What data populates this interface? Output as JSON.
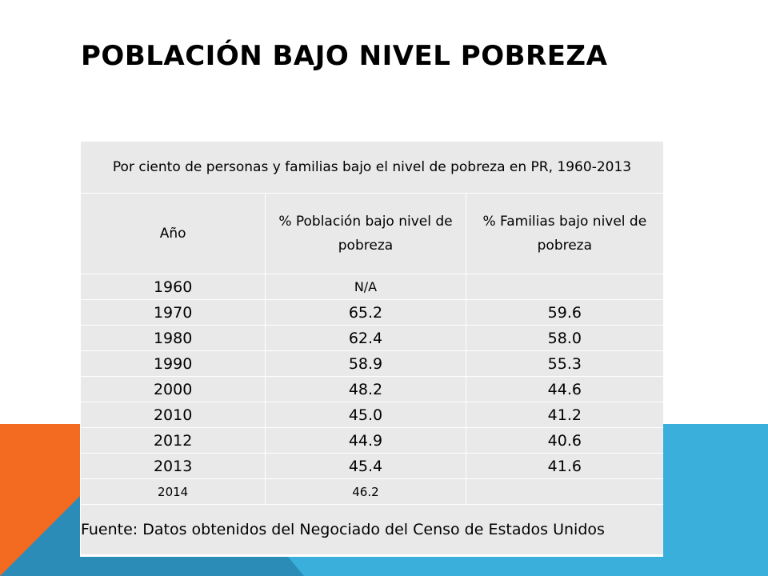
{
  "slide": {
    "title": "POBLACIÓN BAJO NIVEL POBREZA"
  },
  "table": {
    "caption": "Por ciento de personas y familias bajo el nivel de pobreza en PR, 1960-2013",
    "headers": [
      "Año",
      "% Población bajo nivel de pobreza",
      "% Familias bajo nivel de pobreza"
    ],
    "rows": [
      {
        "year": "1960",
        "population": "N/A",
        "families": ""
      },
      {
        "year": "1970",
        "population": "65.2",
        "families": "59.6"
      },
      {
        "year": "1980",
        "population": "62.4",
        "families": "58.0"
      },
      {
        "year": "1990",
        "population": "58.9",
        "families": "55.3"
      },
      {
        "year": "2000",
        "population": "48.2",
        "families": "44.6"
      },
      {
        "year": "2010",
        "population": "45.0",
        "families": "41.2"
      },
      {
        "year": "2012",
        "population": "44.9",
        "families": "40.6"
      },
      {
        "year": "2013",
        "population": "45.4",
        "families": "41.6"
      },
      {
        "year": "2014",
        "population": "46.2",
        "families": ""
      }
    ],
    "source": "Fuente: Datos obtenidos del Negociado del Censo de Estados Unidos"
  },
  "colors": {
    "orange_accent": "#f26b21",
    "blue_accent": "#3aafdc",
    "dark_blue_accent": "#2b7fa6",
    "table_fill": "#e9e9e9"
  }
}
